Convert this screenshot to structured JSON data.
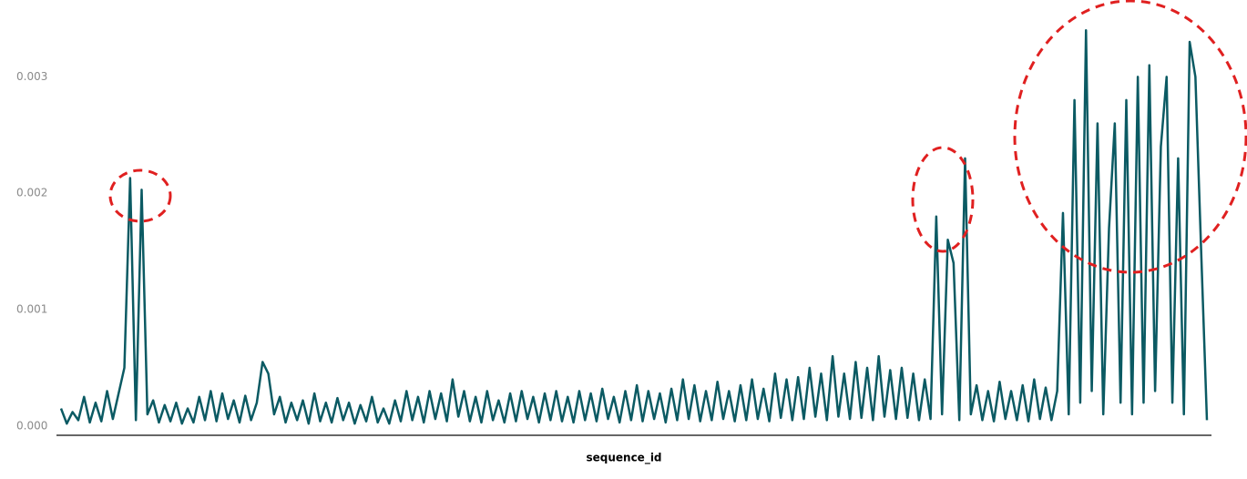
{
  "chart_data": {
    "type": "line",
    "x_label": "sequence_id",
    "color": "#0b5a63",
    "ylim": [
      -8e-05,
      0.00366
    ],
    "yticks": [
      {
        "value": 0,
        "label": "0.000"
      },
      {
        "value": 0.001,
        "label": "0.001"
      },
      {
        "value": 0.002,
        "label": "0.002"
      },
      {
        "value": 0.003,
        "label": "0.003"
      }
    ],
    "grid": false,
    "values": [
      0.00015,
      2e-05,
      0.00012,
      5e-05,
      0.00025,
      3e-05,
      0.0002,
      4e-05,
      0.0003,
      6e-05,
      0.00028,
      0.0005,
      0.00213,
      5e-05,
      0.00203,
      0.0001,
      0.00022,
      3e-05,
      0.00018,
      4e-05,
      0.0002,
      2e-05,
      0.00015,
      3e-05,
      0.00025,
      5e-05,
      0.0003,
      4e-05,
      0.00028,
      6e-05,
      0.00022,
      3e-05,
      0.00026,
      5e-05,
      0.0002,
      0.00055,
      0.00045,
      0.0001,
      0.00025,
      3e-05,
      0.0002,
      5e-05,
      0.00022,
      2e-05,
      0.00028,
      4e-05,
      0.0002,
      3e-05,
      0.00024,
      5e-05,
      0.0002,
      2e-05,
      0.00018,
      4e-05,
      0.00025,
      3e-05,
      0.00015,
      2e-05,
      0.00022,
      4e-05,
      0.0003,
      5e-05,
      0.00025,
      3e-05,
      0.0003,
      6e-05,
      0.00028,
      4e-05,
      0.0004,
      8e-05,
      0.0003,
      4e-05,
      0.00025,
      3e-05,
      0.0003,
      5e-05,
      0.00022,
      3e-05,
      0.00028,
      4e-05,
      0.0003,
      6e-05,
      0.00025,
      3e-05,
      0.00028,
      5e-05,
      0.0003,
      4e-05,
      0.00025,
      3e-05,
      0.0003,
      5e-05,
      0.00028,
      4e-05,
      0.00032,
      6e-05,
      0.00025,
      3e-05,
      0.0003,
      5e-05,
      0.00035,
      4e-05,
      0.0003,
      6e-05,
      0.00028,
      3e-05,
      0.00032,
      5e-05,
      0.0004,
      6e-05,
      0.00035,
      4e-05,
      0.0003,
      5e-05,
      0.00038,
      6e-05,
      0.0003,
      4e-05,
      0.00035,
      5e-05,
      0.0004,
      6e-05,
      0.00032,
      4e-05,
      0.00045,
      7e-05,
      0.0004,
      5e-05,
      0.00042,
      6e-05,
      0.0005,
      8e-05,
      0.00045,
      5e-05,
      0.0006,
      8e-05,
      0.00045,
      6e-05,
      0.00055,
      7e-05,
      0.0005,
      5e-05,
      0.0006,
      8e-05,
      0.00048,
      6e-05,
      0.0005,
      7e-05,
      0.00045,
      5e-05,
      0.0004,
      6e-05,
      0.0018,
      0.0001,
      0.0016,
      0.0014,
      5e-05,
      0.0023,
      0.0001,
      0.00035,
      5e-05,
      0.0003,
      4e-05,
      0.00038,
      6e-05,
      0.0003,
      5e-05,
      0.00035,
      4e-05,
      0.0004,
      6e-05,
      0.00033,
      5e-05,
      0.0003,
      0.00183,
      0.0001,
      0.0028,
      0.0002,
      0.0034,
      0.0003,
      0.0026,
      0.0001,
      0.0017,
      0.0026,
      0.0002,
      0.0028,
      0.0001,
      0.003,
      0.0002,
      0.0031,
      0.0003,
      0.0024,
      0.003,
      0.0002,
      0.0023,
      0.0001,
      0.0033,
      0.003,
      0.0015,
      5e-05
    ]
  }
}
